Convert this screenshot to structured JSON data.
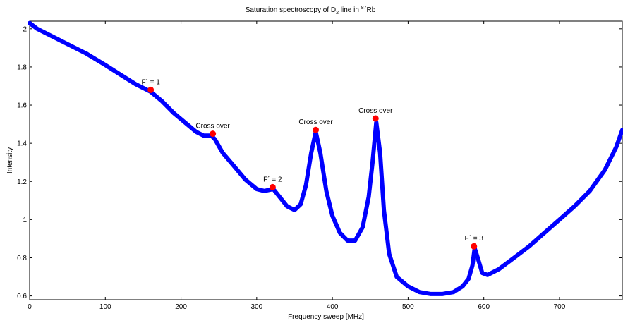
{
  "chart_data": {
    "type": "line",
    "title": "Saturation spectroscopy of D",
    "title_sub": "2",
    "title_mid": " line in ",
    "title_sup": "87",
    "title_end": "Rb",
    "xlabel": "Frequency sweep [MHz]",
    "ylabel": "Intensity",
    "xlim": [
      0,
      783
    ],
    "ylim": [
      0.58,
      2.04
    ],
    "xticks": [
      0,
      100,
      200,
      300,
      400,
      500,
      600,
      700
    ],
    "yticks": [
      0.6,
      0.8,
      1,
      1.2,
      1.4,
      1.6,
      1.8,
      2
    ],
    "ytick_labels": [
      "0.6",
      "0.8",
      "1",
      "1.2",
      "1.4",
      "1.6",
      "1.8",
      "2"
    ],
    "grid": false,
    "line_color": "#0000ff",
    "marker_color": "#ff0000",
    "series": [
      {
        "x": [
          0,
          10,
          25,
          50,
          75,
          100,
          120,
          140,
          160,
          175,
          190,
          205,
          220,
          230,
          240,
          245,
          255,
          270,
          285,
          300,
          310,
          322,
          330,
          340,
          350,
          358,
          365,
          372,
          378,
          384,
          392,
          400,
          410,
          420,
          430,
          440,
          448,
          453,
          458,
          463,
          468,
          475,
          485,
          500,
          515,
          530,
          545,
          560,
          572,
          580,
          585,
          588,
          592,
          598,
          605,
          620,
          640,
          660,
          680,
          700,
          720,
          740,
          760,
          775,
          783
        ],
        "y": [
          2.03,
          2.0,
          1.97,
          1.92,
          1.87,
          1.81,
          1.76,
          1.71,
          1.67,
          1.62,
          1.56,
          1.51,
          1.46,
          1.44,
          1.44,
          1.42,
          1.35,
          1.28,
          1.21,
          1.16,
          1.15,
          1.16,
          1.12,
          1.07,
          1.05,
          1.08,
          1.18,
          1.35,
          1.46,
          1.35,
          1.15,
          1.02,
          0.93,
          0.89,
          0.89,
          0.96,
          1.12,
          1.3,
          1.51,
          1.35,
          1.05,
          0.82,
          0.7,
          0.65,
          0.62,
          0.61,
          0.61,
          0.62,
          0.65,
          0.69,
          0.76,
          0.85,
          0.8,
          0.72,
          0.71,
          0.74,
          0.8,
          0.86,
          0.93,
          1.0,
          1.07,
          1.15,
          1.26,
          1.38,
          1.47
        ]
      }
    ],
    "annotations": [
      {
        "label": "F´ = 1",
        "x": 160,
        "y": 1.68
      },
      {
        "label": "Cross over",
        "x": 242,
        "y": 1.45
      },
      {
        "label": "F´ = 2",
        "x": 321,
        "y": 1.17
      },
      {
        "label": "Cross over",
        "x": 378,
        "y": 1.47
      },
      {
        "label": "Cross over",
        "x": 457,
        "y": 1.53
      },
      {
        "label": "F´ = 3",
        "x": 587,
        "y": 0.86
      }
    ]
  }
}
